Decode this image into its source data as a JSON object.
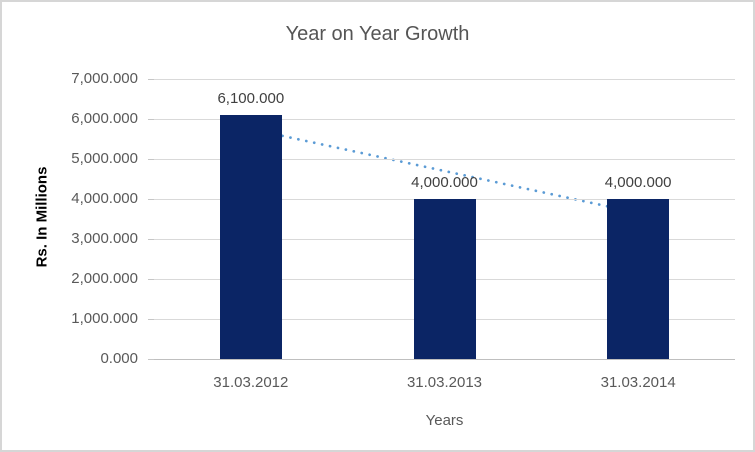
{
  "chart_data": {
    "type": "bar",
    "title": "Year on Year Growth",
    "xlabel": "Years",
    "ylabel": "Rs. In Millions",
    "categories": [
      "31.03.2012",
      "31.03.2013",
      "31.03.2014"
    ],
    "values": [
      6100,
      4000,
      4000
    ],
    "data_labels": [
      "6,100.000",
      "4,000.000",
      "4,000.000"
    ],
    "y_ticks": [
      {
        "value": 0,
        "label": "0.000"
      },
      {
        "value": 1000,
        "label": "1,000.000"
      },
      {
        "value": 2000,
        "label": "2,000.000"
      },
      {
        "value": 3000,
        "label": "3,000.000"
      },
      {
        "value": 4000,
        "label": "4,000.000"
      },
      {
        "value": 5000,
        "label": "5,000.000"
      },
      {
        "value": 6000,
        "label": "6,000.000"
      },
      {
        "value": 7000,
        "label": "7,000.000"
      }
    ],
    "ylim": [
      0,
      7000
    ],
    "grid": true,
    "legend": "none",
    "bar_color": "#0b2565",
    "trendline": {
      "type": "linear",
      "style": "dotted",
      "color": "#5b9bd5",
      "values": [
        5750,
        4700,
        3650
      ]
    },
    "colors": {
      "title_text": "#555555",
      "axis_text": "#595959",
      "data_label_text": "#404040",
      "gridline": "#d9d9d9",
      "axis_line": "#bfbfbf",
      "frame_border": "#d6d6d6",
      "background": "#ffffff"
    }
  }
}
